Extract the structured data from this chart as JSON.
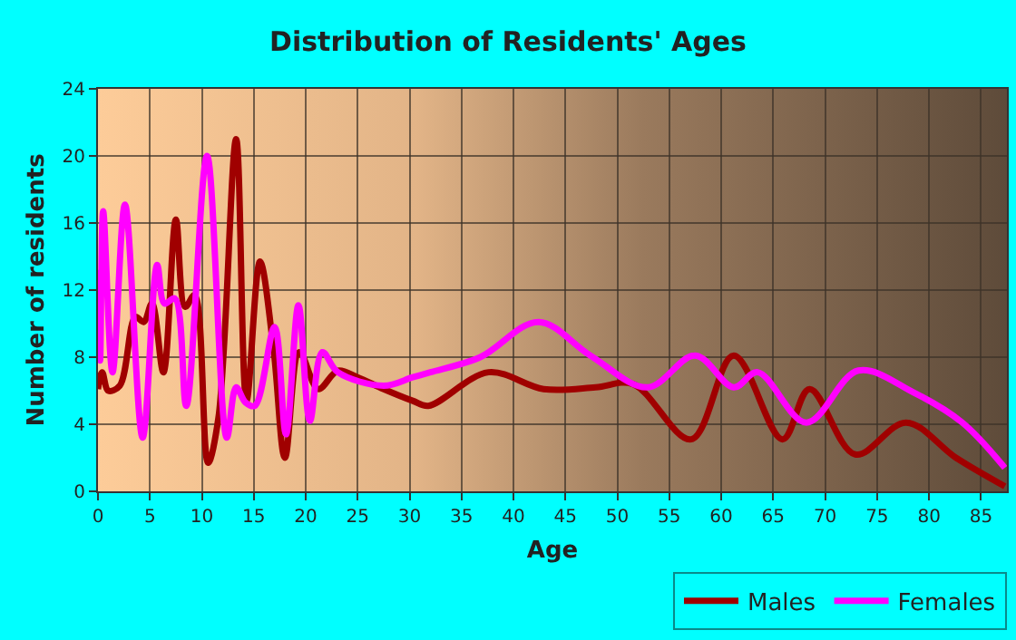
{
  "chart_data": {
    "type": "line",
    "title": "Distribution of Residents' Ages",
    "xlabel": "Age",
    "ylabel": "Number of residents",
    "xlim": [
      0,
      87.5
    ],
    "xticks": [
      0,
      5,
      10,
      15,
      20,
      25,
      30,
      35,
      40,
      45,
      50,
      55,
      60,
      65,
      70,
      75,
      80,
      85
    ],
    "ylim": [
      0,
      24
    ],
    "yticks": [
      0,
      4,
      8,
      12,
      16,
      20,
      24
    ],
    "grid": true,
    "legend": "bottom right",
    "marker": "none",
    "line_style": "solid",
    "series": [
      {
        "name": "Males",
        "color": "#a00000",
        "x": [
          0,
          0.4,
          1,
          2.1,
          3.6,
          4.4,
          5.2,
          6.3,
          7.5,
          8.4,
          9.3,
          10.6,
          11.6,
          13.3,
          14.3,
          15.6,
          16.9,
          18,
          19.4,
          21.2,
          23.1,
          25,
          27.5,
          30.3,
          31.8,
          37.6,
          42.9,
          47.9,
          51.5,
          57.1,
          61.2,
          65.9,
          68.5,
          72.9,
          77.8,
          82.6,
          87.3
        ],
        "values": [
          6.1,
          7.1,
          6,
          6.3,
          10.4,
          10.1,
          11.2,
          7.1,
          16.2,
          11,
          11.7,
          1.7,
          4.4,
          21,
          5.4,
          13.7,
          8.5,
          2,
          8.3,
          6.1,
          7.2,
          6.8,
          6.1,
          5.4,
          5.1,
          7.1,
          6.1,
          6.2,
          6.4,
          3.1,
          8.1,
          3.1,
          6.1,
          2.2,
          4.1,
          2,
          0.3
        ]
      },
      {
        "name": "Females",
        "color": "#ff00ff",
        "x": [
          0,
          0.2,
          0.5,
          1.4,
          2.6,
          4.3,
          5.7,
          6.4,
          7.4,
          8.5,
          10.5,
          12.4,
          13.3,
          14.2,
          15.1,
          17,
          18.1,
          19.3,
          20.4,
          21.6,
          23.1,
          27.5,
          30.3,
          32,
          36.8,
          42.4,
          47.4,
          52.9,
          57.5,
          61.2,
          63.5,
          68.2,
          73.2,
          78.5,
          83.2,
          87.3
        ],
        "values": [
          13.2,
          7.8,
          16.7,
          7.1,
          17.1,
          3.2,
          13.5,
          11.2,
          11.5,
          5.1,
          20,
          3.2,
          6.2,
          5.3,
          5.1,
          9.8,
          3.4,
          11.1,
          4.2,
          8.3,
          7.1,
          6.3,
          6.8,
          7.1,
          8,
          10.1,
          8.1,
          6.2,
          8.1,
          6.2,
          7.1,
          4.1,
          7.2,
          5.9,
          4.1,
          1.4
        ]
      }
    ]
  }
}
